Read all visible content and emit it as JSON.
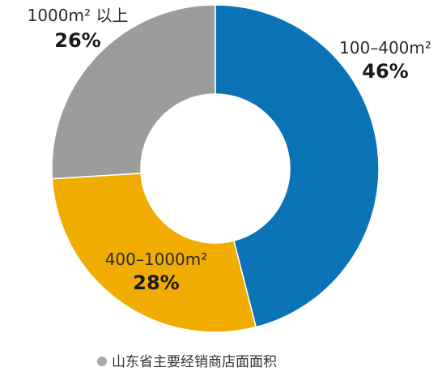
{
  "chart_data": {
    "type": "pie",
    "style": "donut",
    "legend_position": "bottom-left",
    "categories": [
      "100–400m²",
      "400–1000m²",
      "1000m² 以上"
    ],
    "values": [
      46,
      28,
      26
    ],
    "value_labels": [
      "46%",
      "28%",
      "26%"
    ],
    "colors": [
      "#0a73b5",
      "#f0ac00",
      "#9c9c9c"
    ],
    "series": [
      {
        "name": "山东省主要经销商店面面积",
        "color": "#a9a9a9"
      }
    ]
  }
}
